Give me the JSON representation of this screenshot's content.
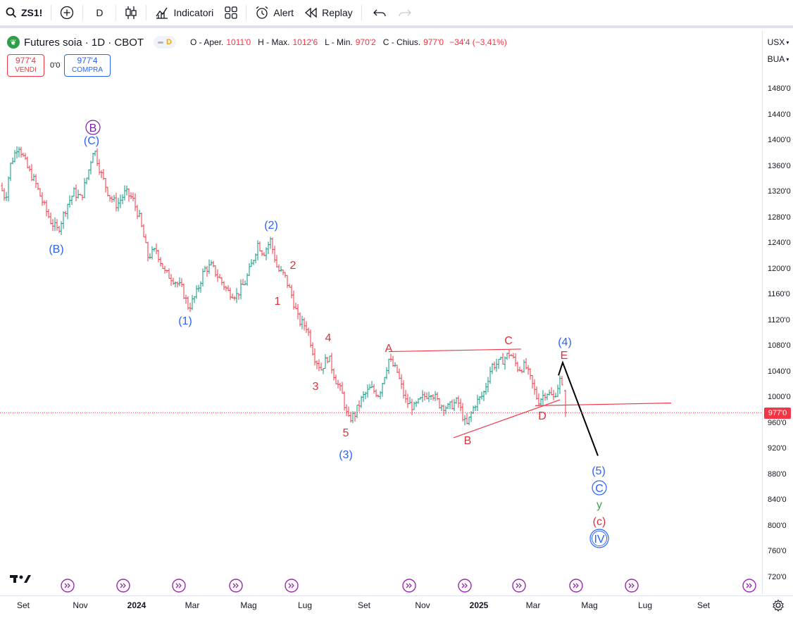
{
  "toolbar": {
    "symbol": "ZS1!",
    "interval": "D",
    "indicators_label": "Indicatori",
    "alert_label": "Alert",
    "replay_label": "Replay"
  },
  "legend": {
    "title": "Futures soia · 1D · CBOT",
    "pill_letter": "D",
    "open_label": "O - Aper.",
    "open": "1011'0",
    "high_label": "H - Max.",
    "high": "1012'6",
    "low_label": "L - Min.",
    "low": "970'2",
    "close_label": "C - Chius.",
    "close": "977'0",
    "change": "−34'4 (−3,41%)"
  },
  "trade": {
    "sell_price": "977'4",
    "sell_label": "VENDI",
    "spread": "0'0",
    "buy_price": "977'4",
    "buy_label": "COMPRA"
  },
  "price_scale": {
    "currency": "USX",
    "unit": "BUA",
    "last_price": "977'0",
    "ticks": [
      "1480'0",
      "1440'0",
      "1400'0",
      "1360'0",
      "1320'0",
      "1280'0",
      "1240'0",
      "1200'0",
      "1160'0",
      "1120'0",
      "1080'0",
      "1040'0",
      "1000'0",
      "960'0",
      "920'0",
      "880'0",
      "840'0",
      "800'0",
      "760'0",
      "720'0"
    ]
  },
  "time_scale": {
    "labels": [
      {
        "text": "Set",
        "bold": false
      },
      {
        "text": "Nov",
        "bold": false
      },
      {
        "text": "2024",
        "bold": true
      },
      {
        "text": "Mar",
        "bold": false
      },
      {
        "text": "Mag",
        "bold": false
      },
      {
        "text": "Lug",
        "bold": false
      },
      {
        "text": "Set",
        "bold": false
      },
      {
        "text": "Nov",
        "bold": false
      },
      {
        "text": "2025",
        "bold": true
      },
      {
        "text": "Mar",
        "bold": false
      },
      {
        "text": "Mag",
        "bold": false
      },
      {
        "text": "Lug",
        "bold": false
      },
      {
        "text": "Set",
        "bold": false
      }
    ]
  },
  "colors": {
    "up": "#089981",
    "down": "#f23645",
    "wave_blue": "#2962ff",
    "wave_red": "#e0313b",
    "wave_purple": "#7b1fa2",
    "wave_green": "#43a047",
    "projection": "#000000"
  },
  "wave_labels": [
    {
      "text": "B",
      "style": "circle-purple"
    },
    {
      "text": "(C)",
      "style": "blue"
    },
    {
      "text": "(B)",
      "style": "blue"
    },
    {
      "text": "(1)",
      "style": "blue"
    },
    {
      "text": "(2)",
      "style": "blue"
    },
    {
      "text": "2",
      "style": "red"
    },
    {
      "text": "1",
      "style": "red"
    },
    {
      "text": "4",
      "style": "red"
    },
    {
      "text": "3",
      "style": "red"
    },
    {
      "text": "5",
      "style": "red"
    },
    {
      "text": "(3)",
      "style": "blue"
    },
    {
      "text": "A",
      "style": "red"
    },
    {
      "text": "B",
      "style": "red"
    },
    {
      "text": "C",
      "style": "red"
    },
    {
      "text": "D",
      "style": "red"
    },
    {
      "text": "E",
      "style": "red"
    },
    {
      "text": "(4)",
      "style": "blue"
    },
    {
      "text": "(5)",
      "style": "blue"
    },
    {
      "text": "C",
      "style": "circle-blue"
    },
    {
      "text": "y",
      "style": "green"
    },
    {
      "text": "(c)",
      "style": "red"
    },
    {
      "text": "IV",
      "style": "circle-blue"
    }
  ],
  "chart_data": {
    "type": "ohlc-bar",
    "title": "Futures soia · 1D · CBOT",
    "y_unit": "USX/BUA",
    "ylim": [
      700,
      1500
    ],
    "x_range": [
      "2023-09",
      "2025-09"
    ],
    "last_bar": {
      "open": 1011.0,
      "high": 1012.75,
      "low": 970.25,
      "close": 977.0
    },
    "price_path": [
      {
        "t": 0,
        "p": 1330
      },
      {
        "t": 8,
        "p": 1310
      },
      {
        "t": 14,
        "p": 1360
      },
      {
        "t": 26,
        "p": 1395
      },
      {
        "t": 38,
        "p": 1360
      },
      {
        "t": 50,
        "p": 1335
      },
      {
        "t": 62,
        "p": 1300
      },
      {
        "t": 72,
        "p": 1275
      },
      {
        "t": 82,
        "p": 1260
      },
      {
        "t": 95,
        "p": 1300
      },
      {
        "t": 105,
        "p": 1320
      },
      {
        "t": 115,
        "p": 1310
      },
      {
        "t": 125,
        "p": 1350
      },
      {
        "t": 133,
        "p": 1390
      },
      {
        "t": 143,
        "p": 1350
      },
      {
        "t": 155,
        "p": 1315
      },
      {
        "t": 166,
        "p": 1300
      },
      {
        "t": 178,
        "p": 1320
      },
      {
        "t": 188,
        "p": 1310
      },
      {
        "t": 198,
        "p": 1280
      },
      {
        "t": 210,
        "p": 1220
      },
      {
        "t": 222,
        "p": 1230
      },
      {
        "t": 234,
        "p": 1195
      },
      {
        "t": 246,
        "p": 1185
      },
      {
        "t": 258,
        "p": 1170
      },
      {
        "t": 268,
        "p": 1140
      },
      {
        "t": 278,
        "p": 1160
      },
      {
        "t": 290,
        "p": 1200
      },
      {
        "t": 300,
        "p": 1205
      },
      {
        "t": 312,
        "p": 1185
      },
      {
        "t": 324,
        "p": 1165
      },
      {
        "t": 336,
        "p": 1160
      },
      {
        "t": 348,
        "p": 1180
      },
      {
        "t": 358,
        "p": 1210
      },
      {
        "t": 366,
        "p": 1240
      },
      {
        "t": 374,
        "p": 1225
      },
      {
        "t": 384,
        "p": 1245
      },
      {
        "t": 394,
        "p": 1200
      },
      {
        "t": 404,
        "p": 1190
      },
      {
        "t": 414,
        "p": 1160
      },
      {
        "t": 424,
        "p": 1120
      },
      {
        "t": 436,
        "p": 1110
      },
      {
        "t": 446,
        "p": 1065
      },
      {
        "t": 456,
        "p": 1045
      },
      {
        "t": 466,
        "p": 1065
      },
      {
        "t": 476,
        "p": 1030
      },
      {
        "t": 486,
        "p": 1005
      },
      {
        "t": 494,
        "p": 965
      },
      {
        "t": 504,
        "p": 975
      },
      {
        "t": 514,
        "p": 1000
      },
      {
        "t": 526,
        "p": 1015
      },
      {
        "t": 538,
        "p": 1005
      },
      {
        "t": 552,
        "p": 1060
      },
      {
        "t": 564,
        "p": 1040
      },
      {
        "t": 576,
        "p": 995
      },
      {
        "t": 588,
        "p": 985
      },
      {
        "t": 600,
        "p": 1000
      },
      {
        "t": 612,
        "p": 1010
      },
      {
        "t": 624,
        "p": 990
      },
      {
        "t": 636,
        "p": 985
      },
      {
        "t": 650,
        "p": 995
      },
      {
        "t": 662,
        "p": 955
      },
      {
        "t": 674,
        "p": 990
      },
      {
        "t": 686,
        "p": 1005
      },
      {
        "t": 698,
        "p": 1050
      },
      {
        "t": 710,
        "p": 1055
      },
      {
        "t": 724,
        "p": 1070
      },
      {
        "t": 736,
        "p": 1045
      },
      {
        "t": 746,
        "p": 1050
      },
      {
        "t": 756,
        "p": 1020
      },
      {
        "t": 764,
        "p": 995
      },
      {
        "t": 776,
        "p": 1010
      },
      {
        "t": 786,
        "p": 1000
      },
      {
        "t": 796,
        "p": 1030
      },
      {
        "t": 803,
        "p": 977
      }
    ],
    "projection": {
      "from": {
        "t": 799,
        "p": 1055
      },
      "to": {
        "t": 849,
        "p": 910
      },
      "start": {
        "t": 793,
        "p": 1035
      }
    },
    "trendlines": [
      {
        "name": "triangle-upper",
        "from": {
          "t": 552,
          "p": 1072
        },
        "to": {
          "t": 740,
          "p": 1076
        }
      },
      {
        "name": "triangle-lower",
        "from": {
          "t": 644,
          "p": 938
        },
        "to": {
          "t": 795,
          "p": 997
        }
      },
      {
        "name": "horizontal",
        "from": {
          "t": 760,
          "p": 988
        },
        "to": {
          "t": 953,
          "p": 992
        }
      }
    ]
  }
}
